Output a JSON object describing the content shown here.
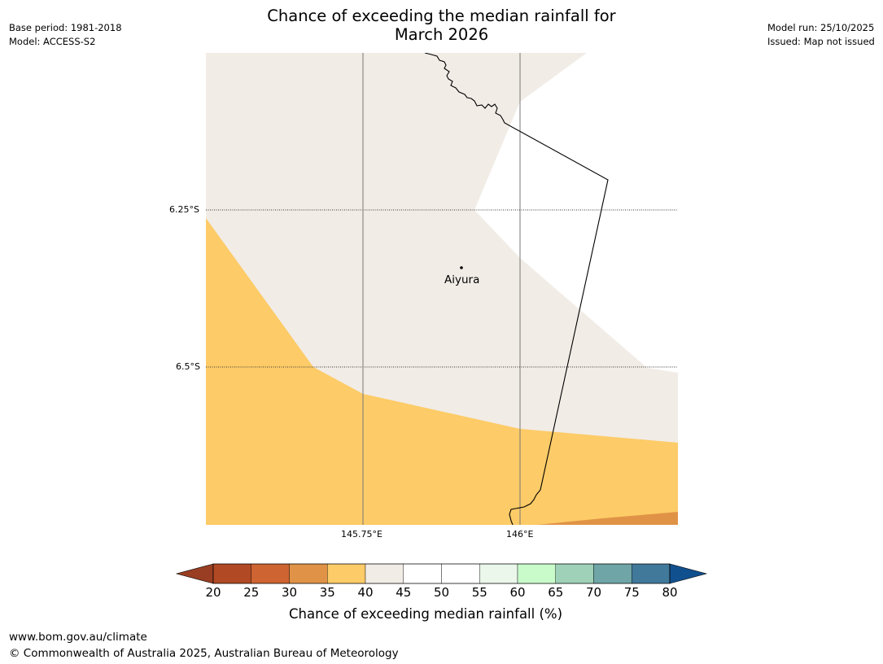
{
  "header": {
    "title_line1": "Chance of exceeding the median rainfall for",
    "title_line2": "March 2026",
    "left_line1": "Base period: 1981-2018",
    "left_line2": "Model: ACCESS-S2",
    "right_line1": "Model run: 25/10/2025",
    "right_line2": "Issued: Map not issued"
  },
  "map": {
    "lat_labels": [
      "6.25°S",
      "6.5°S"
    ],
    "lon_labels": [
      "145.75°E",
      "146°E"
    ],
    "place": {
      "name": "Aiyura"
    },
    "region_fills": {
      "35_40": "#fdcb67",
      "40_45": "#f1ece6",
      "45_55": "#ffffff",
      "30_35": "#e09347"
    }
  },
  "colorbar": {
    "title": "Chance of exceeding median rainfall (%)",
    "ticks": [
      "20",
      "25",
      "30",
      "35",
      "40",
      "45",
      "50",
      "55",
      "60",
      "65",
      "70",
      "75",
      "80"
    ],
    "bins": [
      {
        "range": "20-25",
        "color": "#b14a24"
      },
      {
        "range": "25-30",
        "color": "#cd6432"
      },
      {
        "range": "30-35",
        "color": "#e09347"
      },
      {
        "range": "35-40",
        "color": "#fdcb67"
      },
      {
        "range": "40-45",
        "color": "#f1ece6"
      },
      {
        "range": "45-50",
        "color": "#ffffff"
      },
      {
        "range": "50-55",
        "color": "#ffffff"
      },
      {
        "range": "55-60",
        "color": "#eaf7ea"
      },
      {
        "range": "60-65",
        "color": "#c9fbca"
      },
      {
        "range": "65-70",
        "color": "#9ed1b8"
      },
      {
        "range": "70-75",
        "color": "#6fa5a6"
      },
      {
        "range": "75-80",
        "color": "#41799a"
      }
    ],
    "under_color": "#993e22",
    "over_color": "#11508e"
  },
  "footer": {
    "url": "www.bom.gov.au/climate",
    "copyright": "© Commonwealth of Australia 2025, Australian Bureau of Meteorology"
  }
}
